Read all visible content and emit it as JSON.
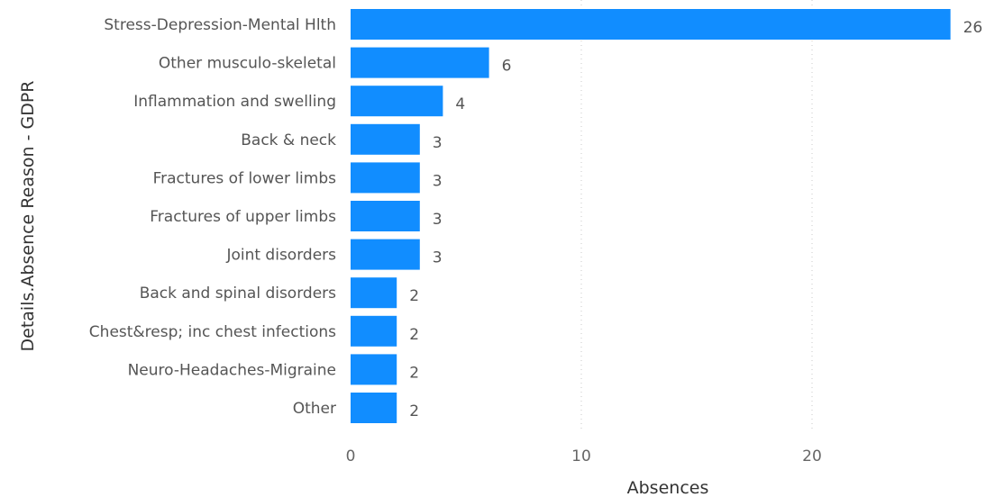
{
  "chart_data": {
    "type": "bar",
    "orientation": "horizontal",
    "categories": [
      "Stress-Depression-Mental Hlth",
      "Other musculo-skeletal",
      "Inflammation and swelling",
      "Back & neck",
      "Fractures of lower limbs",
      "Fractures of upper limbs",
      "Joint disorders",
      "Back and spinal disorders",
      "Chest&resp; inc chest infections",
      "Neuro-Headaches-Migraine",
      "Other"
    ],
    "values": [
      26,
      6,
      4,
      3,
      3,
      3,
      3,
      2,
      2,
      2,
      2
    ],
    "value_labels": [
      "26",
      "6",
      "4",
      "3",
      "3",
      "3",
      "3",
      "2",
      "2",
      "2",
      "2"
    ],
    "xlabel": "Absences",
    "ylabel": "Details.Absence Reason - GDPR",
    "xlim": [
      0,
      27
    ],
    "xticks": [
      0,
      10,
      20
    ],
    "xtick_labels": [
      "0",
      "10",
      "20"
    ],
    "grid": true,
    "bar_color": "#118DFF"
  }
}
